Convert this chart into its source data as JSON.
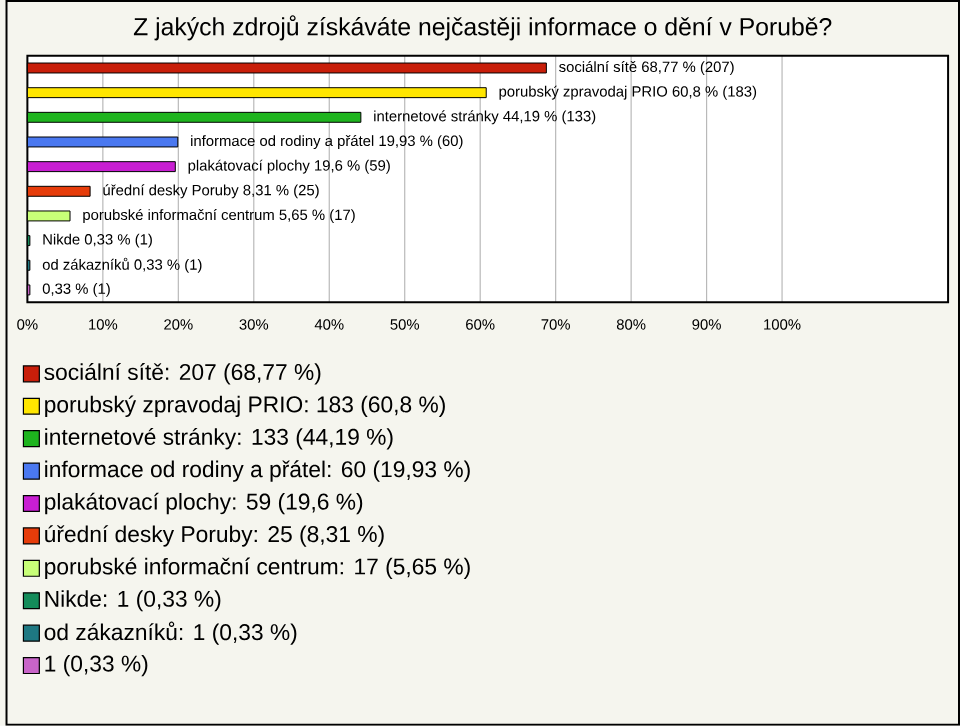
{
  "chart_data": {
    "type": "bar",
    "orientation": "horizontal",
    "title": "Z jakých zdrojů získáváte nejčastěji informace o dění v Porubě?",
    "categories": [
      null,
      null,
      null,
      null,
      null,
      null,
      null,
      null,
      null,
      null
    ],
    "values": [
      68.77,
      60.8,
      44.19,
      19.93,
      19.6,
      8.31,
      5.65,
      0.33,
      0.33,
      0.33
    ],
    "colors": [
      "#c81e0a",
      "#ffe600",
      "#1eb41e",
      "#4a78f0",
      "#c81ed2",
      "#e63c0a",
      "#c8ff78",
      "#148c5a",
      "#1e7882",
      "#c864c8"
    ],
    "value_labels": [
      "sociální sítě 68,77 % (207)",
      "porubský zpravodaj PRIO 60,8 % (183)",
      "internetové stránky 44,19 % (133)",
      "informace od rodiny a přátel 19,93 % (60)",
      "plakátovací plochy 19,6 % (59)",
      "úřední desky Poruby 8,31 % (25)",
      "porubské informační centrum 5,65 % (17)",
      "Nikde 0,33 % (1)",
      "od zákazníků 0,33 % (1)",
      "0,33 % (1)"
    ],
    "xlim": [
      0,
      122
    ],
    "xticks": [
      {
        "value": 0,
        "label": "0%"
      },
      {
        "value": 10,
        "label": "10%"
      },
      {
        "value": 20,
        "label": "20%"
      },
      {
        "value": 30,
        "label": "30%"
      },
      {
        "value": 40,
        "label": "40%"
      },
      {
        "value": 50,
        "label": "50%"
      },
      {
        "value": 60,
        "label": "60%"
      },
      {
        "value": 70,
        "label": "70%"
      },
      {
        "value": 80,
        "label": "80%"
      },
      {
        "value": 90,
        "label": "90%"
      },
      {
        "value": 100,
        "label": "100%"
      }
    ],
    "grid": "x",
    "tick_labels": "x",
    "annotations": [
      "sociální sítě: 207 (68,77 %)",
      "porubský zpravodaj PRIO: 183 (60,8 %)",
      "internetové stránky: 133 (44,19 %)",
      "informace od rodiny a přátel: 60 (19,93 %)",
      "plakátovací plochy: 59 (19,6 %)",
      "úřední desky Poruby: 25 (8,31 %)",
      "porubské informační centrum: 17 (5,65 %)",
      "Nikde: 1 (0,33 %)",
      "od zákazníků: 1 (0,33 %)",
      "1 (0,33 %)"
    ]
  }
}
